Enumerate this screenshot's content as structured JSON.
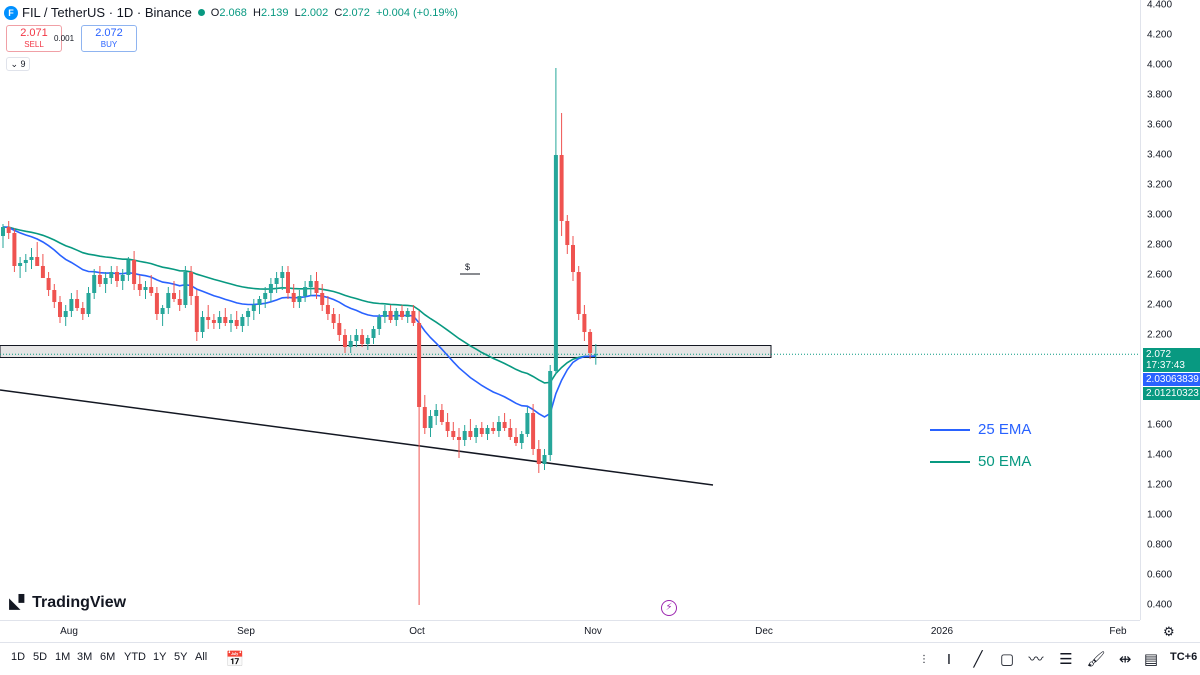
{
  "header": {
    "title": "FIL / TetherUS · 1D · Binance",
    "logo_letter": "F",
    "ohlc": [
      {
        "label": "O",
        "value": "2.068"
      },
      {
        "label": "H",
        "value": "2.139"
      },
      {
        "label": "L",
        "value": "2.002"
      },
      {
        "label": "C",
        "value": "2.072"
      },
      {
        "label": "",
        "value": "+0.004 (+0.19%)"
      }
    ]
  },
  "trade": {
    "sell_price": "2.071",
    "sell_label": "SELL",
    "spread": "0.001",
    "buy_price": "2.072",
    "buy_label": "BUY"
  },
  "indicator_toggle": "9",
  "dividend_flag": "$",
  "price_axis": {
    "ticks": [
      "4.400",
      "4.200",
      "4.000",
      "3.800",
      "3.600",
      "3.400",
      "3.200",
      "3.000",
      "2.800",
      "2.600",
      "2.400",
      "2.200",
      "1.600",
      "1.400",
      "1.200",
      "1.000",
      "0.800",
      "0.600",
      "0.400"
    ],
    "last_price": "2.072",
    "countdown": "17:37:43",
    "ema25_value": "2.03063839",
    "ema50_value": "2.01210323"
  },
  "time_axis": {
    "labels": [
      "Aug",
      "Sep",
      "Oct",
      "Nov",
      "Dec",
      "2026",
      "Feb"
    ]
  },
  "legend": {
    "ema25": "25 EMA",
    "ema50": "50 EMA"
  },
  "colors": {
    "up": "#26a69a",
    "down": "#ef5350",
    "ema25": "#2962ff",
    "ema50": "#089981",
    "last_price_tag": "#089981"
  },
  "brand": "TradingView",
  "range_buttons": [
    "1D",
    "5D",
    "1M",
    "3M",
    "6M",
    "YTD",
    "1Y",
    "5Y",
    "All"
  ],
  "timezone": "TC+6",
  "chart_data": {
    "type": "candlestick",
    "candles": [
      [
        2.86,
        2.94,
        2.78,
        2.92
      ],
      [
        2.92,
        2.96,
        2.84,
        2.88
      ],
      [
        2.88,
        2.91,
        2.62,
        2.66
      ],
      [
        2.66,
        2.72,
        2.58,
        2.68
      ],
      [
        2.68,
        2.74,
        2.62,
        2.7
      ],
      [
        2.7,
        2.78,
        2.64,
        2.72
      ],
      [
        2.72,
        2.82,
        2.68,
        2.66
      ],
      [
        2.66,
        2.74,
        2.6,
        2.58
      ],
      [
        2.58,
        2.62,
        2.46,
        2.5
      ],
      [
        2.5,
        2.54,
        2.38,
        2.42
      ],
      [
        2.42,
        2.46,
        2.28,
        2.32
      ],
      [
        2.32,
        2.4,
        2.26,
        2.36
      ],
      [
        2.36,
        2.48,
        2.32,
        2.44
      ],
      [
        2.44,
        2.5,
        2.36,
        2.38
      ],
      [
        2.38,
        2.42,
        2.3,
        2.34
      ],
      [
        2.34,
        2.52,
        2.32,
        2.48
      ],
      [
        2.48,
        2.64,
        2.44,
        2.6
      ],
      [
        2.6,
        2.66,
        2.52,
        2.54
      ],
      [
        2.54,
        2.62,
        2.48,
        2.58
      ],
      [
        2.58,
        2.66,
        2.54,
        2.62
      ],
      [
        2.62,
        2.66,
        2.52,
        2.56
      ],
      [
        2.56,
        2.64,
        2.5,
        2.6
      ],
      [
        2.6,
        2.72,
        2.56,
        2.7
      ],
      [
        2.7,
        2.76,
        2.5,
        2.54
      ],
      [
        2.54,
        2.6,
        2.46,
        2.5
      ],
      [
        2.5,
        2.56,
        2.44,
        2.52
      ],
      [
        2.52,
        2.6,
        2.46,
        2.48
      ],
      [
        2.48,
        2.52,
        2.3,
        2.34
      ],
      [
        2.34,
        2.4,
        2.26,
        2.38
      ],
      [
        2.38,
        2.52,
        2.34,
        2.48
      ],
      [
        2.48,
        2.56,
        2.42,
        2.44
      ],
      [
        2.44,
        2.5,
        2.36,
        2.4
      ],
      [
        2.4,
        2.66,
        2.38,
        2.62
      ],
      [
        2.62,
        2.66,
        2.4,
        2.46
      ],
      [
        2.46,
        2.5,
        2.16,
        2.22
      ],
      [
        2.22,
        2.36,
        2.18,
        2.32
      ],
      [
        2.32,
        2.4,
        2.24,
        2.3
      ],
      [
        2.3,
        2.34,
        2.24,
        2.28
      ],
      [
        2.28,
        2.36,
        2.24,
        2.32
      ],
      [
        2.32,
        2.38,
        2.26,
        2.28
      ],
      [
        2.28,
        2.34,
        2.22,
        2.3
      ],
      [
        2.3,
        2.36,
        2.24,
        2.26
      ],
      [
        2.26,
        2.34,
        2.22,
        2.32
      ],
      [
        2.32,
        2.38,
        2.26,
        2.36
      ],
      [
        2.36,
        2.44,
        2.3,
        2.4
      ],
      [
        2.4,
        2.46,
        2.34,
        2.44
      ],
      [
        2.44,
        2.52,
        2.38,
        2.48
      ],
      [
        2.48,
        2.58,
        2.42,
        2.54
      ],
      [
        2.54,
        2.62,
        2.48,
        2.58
      ],
      [
        2.58,
        2.66,
        2.5,
        2.62
      ],
      [
        2.62,
        2.66,
        2.44,
        2.48
      ],
      [
        2.48,
        2.54,
        2.38,
        2.42
      ],
      [
        2.42,
        2.5,
        2.38,
        2.46
      ],
      [
        2.46,
        2.56,
        2.42,
        2.52
      ],
      [
        2.52,
        2.6,
        2.46,
        2.56
      ],
      [
        2.56,
        2.62,
        2.44,
        2.48
      ],
      [
        2.48,
        2.54,
        2.36,
        2.4
      ],
      [
        2.4,
        2.46,
        2.3,
        2.34
      ],
      [
        2.34,
        2.38,
        2.24,
        2.28
      ],
      [
        2.28,
        2.34,
        2.16,
        2.2
      ],
      [
        2.2,
        2.24,
        2.08,
        2.12
      ],
      [
        2.12,
        2.2,
        2.08,
        2.16
      ],
      [
        2.16,
        2.24,
        2.12,
        2.2
      ],
      [
        2.2,
        2.24,
        2.12,
        2.14
      ],
      [
        2.14,
        2.2,
        2.1,
        2.18
      ],
      [
        2.18,
        2.26,
        2.14,
        2.24
      ],
      [
        2.24,
        2.34,
        2.2,
        2.32
      ],
      [
        2.32,
        2.4,
        2.28,
        2.36
      ],
      [
        2.36,
        2.4,
        2.28,
        2.3
      ],
      [
        2.3,
        2.38,
        2.26,
        2.36
      ],
      [
        2.36,
        2.4,
        2.3,
        2.32
      ],
      [
        2.32,
        2.38,
        2.28,
        2.36
      ],
      [
        2.36,
        2.4,
        2.26,
        2.28
      ],
      [
        2.28,
        2.36,
        0.4,
        1.72
      ],
      [
        1.72,
        1.8,
        1.54,
        1.58
      ],
      [
        1.58,
        1.7,
        1.52,
        1.66
      ],
      [
        1.66,
        1.74,
        1.6,
        1.7
      ],
      [
        1.7,
        1.74,
        1.6,
        1.62
      ],
      [
        1.62,
        1.68,
        1.52,
        1.56
      ],
      [
        1.56,
        1.62,
        1.5,
        1.52
      ],
      [
        1.52,
        1.58,
        1.38,
        1.5
      ],
      [
        1.5,
        1.6,
        1.46,
        1.56
      ],
      [
        1.56,
        1.64,
        1.5,
        1.52
      ],
      [
        1.52,
        1.6,
        1.48,
        1.58
      ],
      [
        1.58,
        1.62,
        1.52,
        1.54
      ],
      [
        1.54,
        1.6,
        1.5,
        1.58
      ],
      [
        1.58,
        1.62,
        1.54,
        1.56
      ],
      [
        1.56,
        1.66,
        1.52,
        1.62
      ],
      [
        1.62,
        1.68,
        1.56,
        1.58
      ],
      [
        1.58,
        1.64,
        1.5,
        1.52
      ],
      [
        1.52,
        1.58,
        1.46,
        1.48
      ],
      [
        1.48,
        1.56,
        1.44,
        1.54
      ],
      [
        1.54,
        1.72,
        1.52,
        1.68
      ],
      [
        1.68,
        1.74,
        1.4,
        1.44
      ],
      [
        1.44,
        1.5,
        1.28,
        1.34
      ],
      [
        1.34,
        1.44,
        1.3,
        1.4
      ],
      [
        1.4,
        2.0,
        1.36,
        1.96
      ],
      [
        1.96,
        3.98,
        1.94,
        3.4
      ],
      [
        3.4,
        3.68,
        2.86,
        2.96
      ],
      [
        2.96,
        3.0,
        2.74,
        2.8
      ],
      [
        2.8,
        2.86,
        2.56,
        2.62
      ],
      [
        2.62,
        2.66,
        2.3,
        2.34
      ],
      [
        2.34,
        2.4,
        2.16,
        2.22
      ],
      [
        2.22,
        2.24,
        2.04,
        2.08
      ],
      [
        2.068,
        2.139,
        2.002,
        2.072
      ]
    ],
    "ema25_end": 2.03063839,
    "ema50_end": 2.01210323,
    "support_zone": [
      2.05,
      2.13
    ],
    "ylim": [
      0.4,
      4.4
    ]
  }
}
